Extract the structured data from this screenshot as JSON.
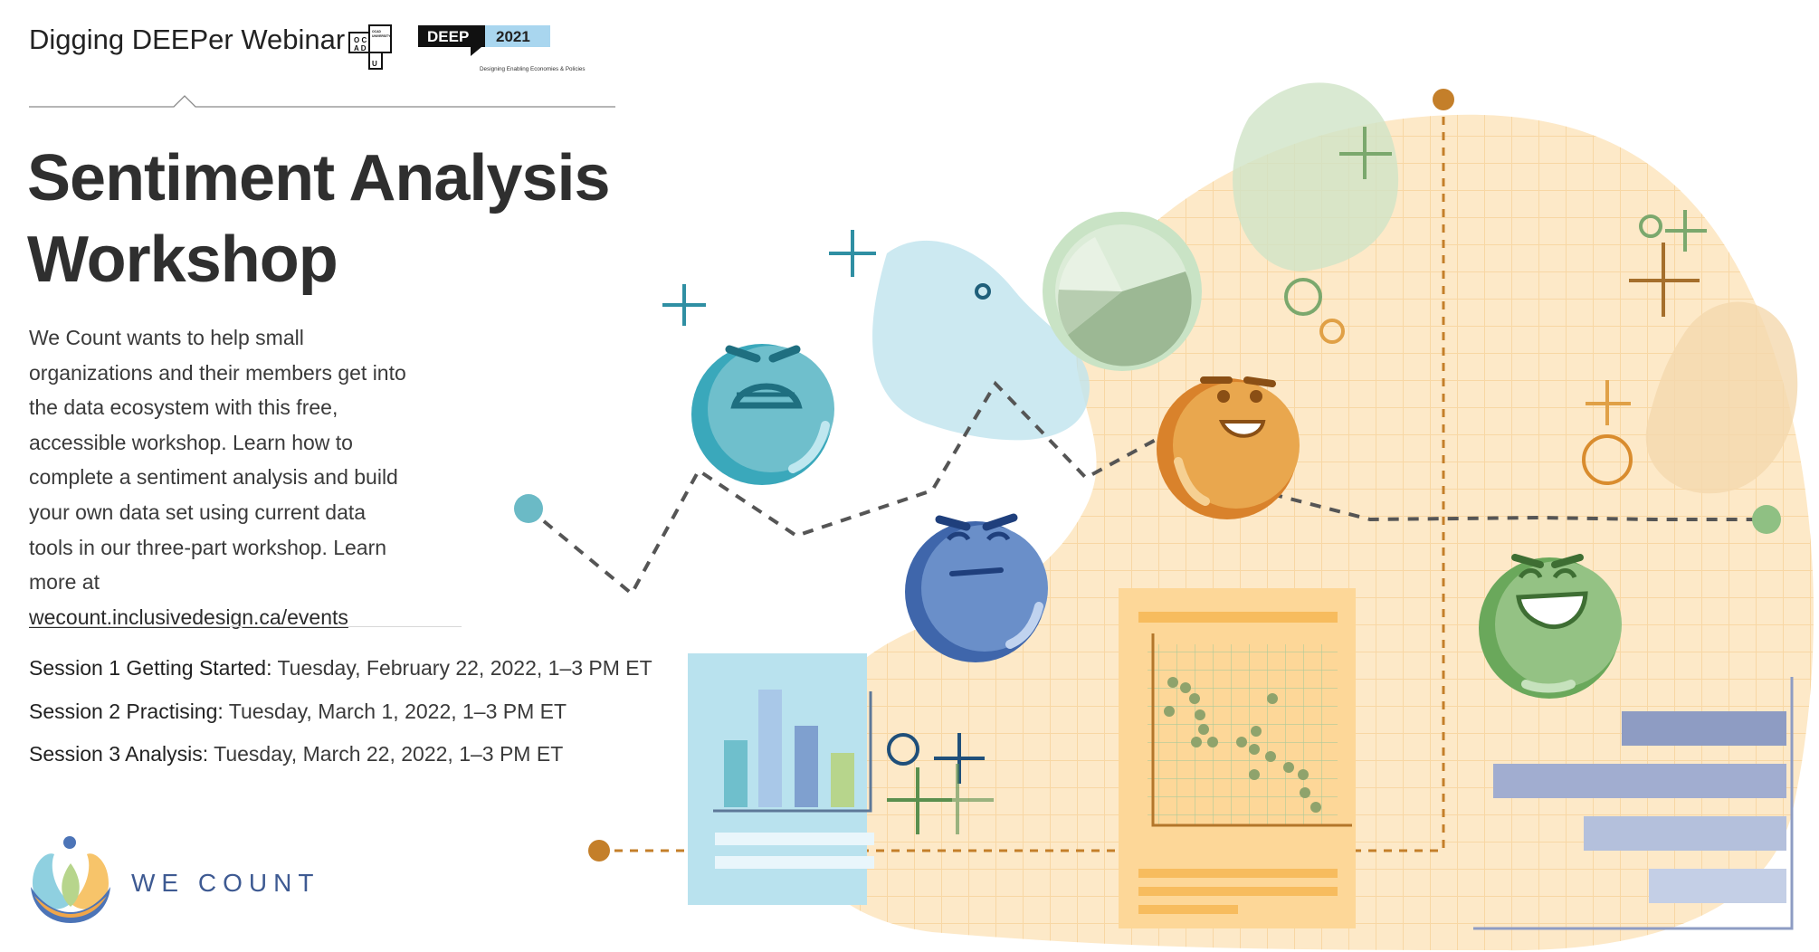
{
  "header": {
    "title": "Digging DEEPer Webinar",
    "ocad_logo_text": "OCAD UNIVERSITY",
    "deep_logo": {
      "word": "DEEP",
      "year": "2021",
      "tagline": "Designing Enabling Economies & Policies"
    }
  },
  "main": {
    "title_line1": "Sentiment Analysis",
    "title_line2": "Workshop",
    "description_text": "We Count wants to help small organizations and their members get into the data ecosystem with this free, accessible workshop. Learn how to complete a sentiment analysis and build your own data set using current data tools in our three-part workshop. Learn more at ",
    "link_text": "wecount.inclusivedesign.ca/events"
  },
  "sessions": [
    {
      "name": "Session 1 Getting Started:",
      "when": "Tuesday, February 22, 2022, 1–3 PM ET"
    },
    {
      "name": "Session 2 Practising:",
      "when": "Tuesday, March 1, 2022, 1–3 PM ET"
    },
    {
      "name": "Session 3 Analysis:",
      "when": "Tuesday, March 22, 2022, 1–3 PM ET"
    }
  ],
  "footer": {
    "brand": "WE COUNT"
  },
  "colors": {
    "teal": "#4fb3c4",
    "blue": "#4c74b7",
    "orange": "#d98c2e",
    "green": "#7bb06e",
    "peach_blob": "#fde9c8",
    "brand_navy": "#3e5a92"
  },
  "illustration": {
    "icons": [
      "angry-teal-face-icon",
      "annoyed-blue-face-icon",
      "happy-orange-face-icon",
      "laughing-green-face-icon",
      "pie-chart-icon",
      "bar-chart-icon",
      "scatter-chart-icon",
      "horizontal-bar-chart-icon"
    ]
  }
}
